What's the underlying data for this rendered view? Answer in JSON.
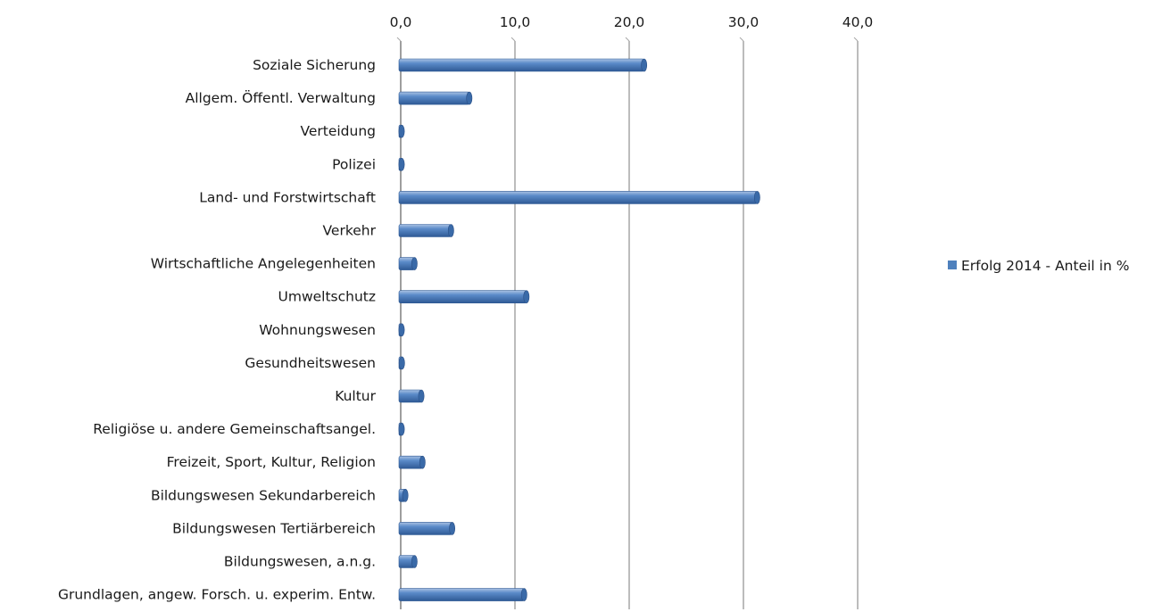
{
  "chart_data": {
    "type": "bar",
    "orientation": "horizontal",
    "title": "",
    "xlabel": "",
    "ylabel": "",
    "xlim": [
      0,
      40
    ],
    "ticks": [
      0,
      10,
      20,
      30,
      40
    ],
    "tick_labels": [
      "0,0",
      "10,0",
      "20,0",
      "30,0",
      "40,0"
    ],
    "grid": "vertical",
    "axis_position": "top",
    "legend_position": "right",
    "bar_color": "#4f81bd",
    "categories": [
      "Soziale Sicherung",
      "Allgem. Öffentl. Verwaltung",
      "Verteidung",
      "Polizei",
      "Land-  und Forstwirtschaft",
      "Verkehr",
      "Wirtschaftliche Angelegenheiten",
      "Umweltschutz",
      "Wohnungswesen",
      "Gesundheitswesen",
      "Kultur",
      "Religiöse u. andere Gemeinschaftsangel.",
      "Freizeit, Sport, Kultur, Religion",
      "Bildungswesen Sekundarbereich",
      "Bildungswesen Tertiärbereich",
      "Bildungswesen, a.n.g.",
      "Grundlagen, angew. Forsch. u. experim. Entw."
    ],
    "series": [
      {
        "name": "Erfolg 2014 - Anteil in %",
        "values": [
          21.3,
          6.0,
          0.0,
          0.0,
          31.2,
          4.4,
          1.2,
          11.0,
          0.0,
          0.1,
          1.8,
          0.0,
          1.9,
          0.4,
          4.5,
          1.2,
          10.8
        ]
      }
    ]
  }
}
